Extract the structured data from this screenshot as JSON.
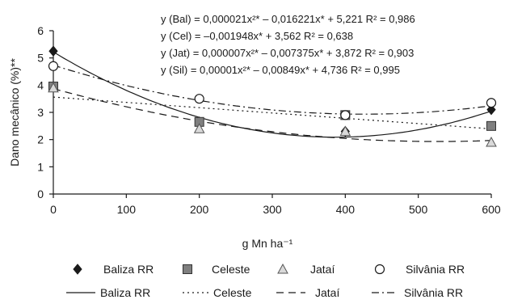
{
  "chart_data": {
    "type": "scatter",
    "xlabel": "g Mn ha⁻¹",
    "ylabel": "Dano mecânico (%)**",
    "xlim": [
      0,
      600
    ],
    "ylim": [
      0,
      6
    ],
    "xticks": [
      0,
      100,
      200,
      300,
      400,
      500,
      600
    ],
    "yticks": [
      0,
      1,
      2,
      3,
      4,
      5,
      6
    ],
    "x": [
      0,
      200,
      400,
      600
    ],
    "series": [
      {
        "name": "Baliza RR",
        "marker": "diamond",
        "values": [
          5.25,
          2.65,
          2.3,
          3.1
        ],
        "fit": {
          "type": "quadratic",
          "a": 2.1e-05,
          "b": -0.016221,
          "c": 5.221,
          "dash": "solid",
          "label": "Baliza RR"
        }
      },
      {
        "name": "Celeste",
        "marker": "square",
        "values": [
          3.95,
          2.65,
          2.9,
          2.5
        ],
        "fit": {
          "type": "linear",
          "a": 0,
          "b": -0.001948,
          "c": 3.562,
          "dash": "dotted",
          "label": "Celeste"
        }
      },
      {
        "name": "Jataí",
        "marker": "triangle",
        "values": [
          3.9,
          2.4,
          2.3,
          1.9
        ],
        "fit": {
          "type": "quadratic",
          "a": 7e-06,
          "b": -0.007375,
          "c": 3.872,
          "dash": "dashed",
          "label": "Jataí"
        }
      },
      {
        "name": "Silvânia RR",
        "marker": "circle",
        "values": [
          4.7,
          3.5,
          2.9,
          3.35
        ],
        "fit": {
          "type": "quadratic",
          "a": 1e-05,
          "b": -0.00849,
          "c": 4.736,
          "dash": "dashdot",
          "label": "Silvânia RR"
        }
      }
    ],
    "equations": [
      "y (Bal) = 0,000021x²* – 0,016221x* + 5,221  R² = 0,986",
      "y (Cel) = –0,001948x* + 3,562  R² = 0,638",
      "y (Jat) = 0,000007x²* – 0,007375x* + 3,872  R² = 0,903",
      "y (Sil) = 0,00001x²* – 0,00849x* + 4,736  R² = 0,995"
    ],
    "colors": {
      "axis": "#1a1a1a",
      "marker_fill_dark": "#1a1a1a",
      "marker_fill_gray": "#7f7f7f",
      "marker_fill_light": "#d9d9d9",
      "background": "#ffffff"
    }
  }
}
